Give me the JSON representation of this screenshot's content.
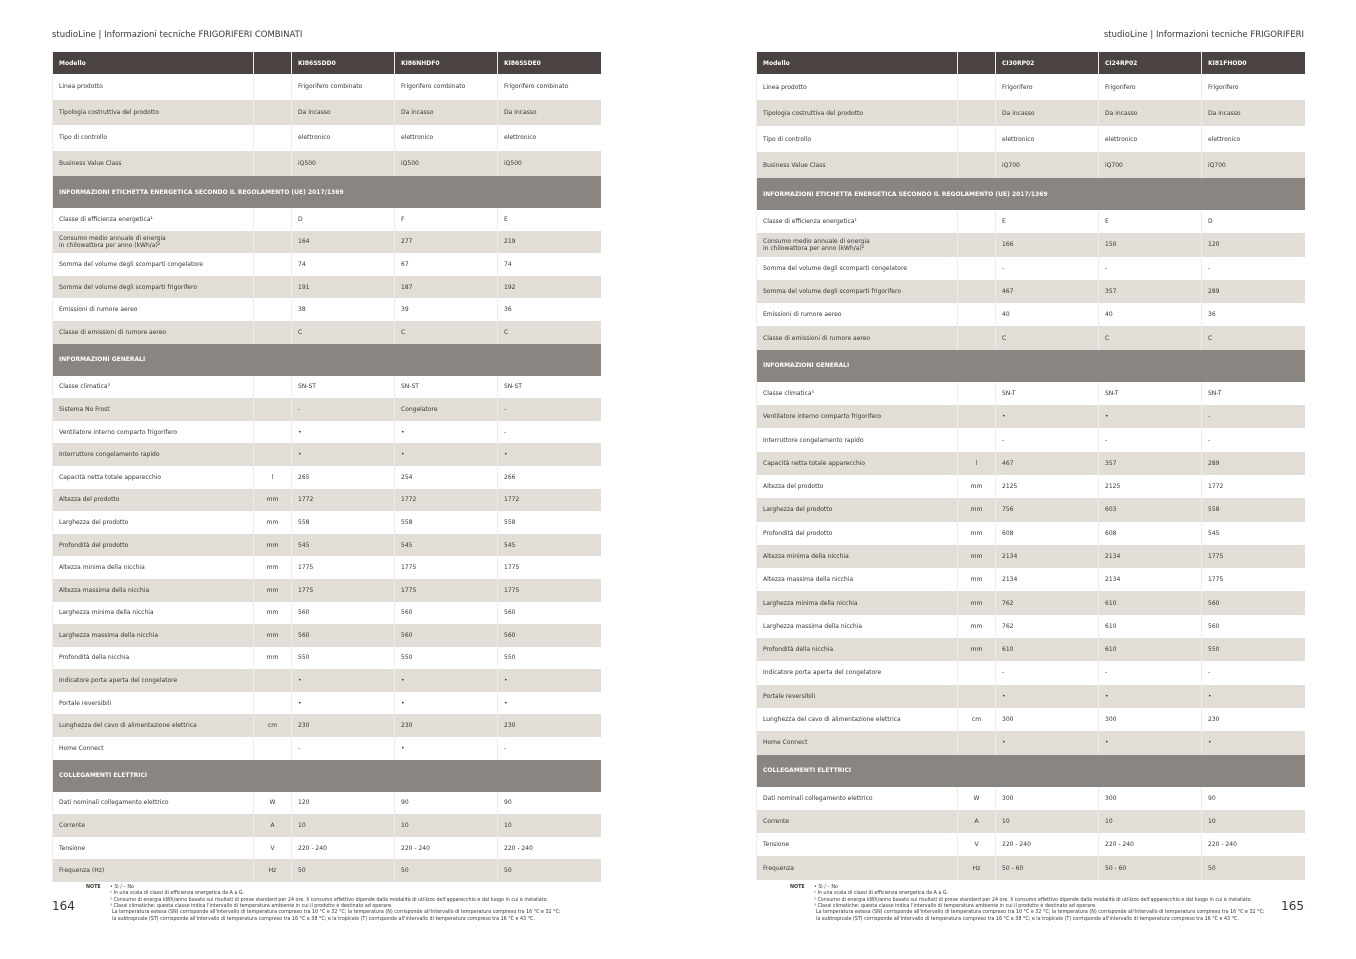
{
  "pages": [
    {
      "header": "studioLine | Informazioni tecniche FRIGORIFERI COMBINATI",
      "page_number": "164",
      "table": {
        "header": [
          "Modello",
          null,
          "KI86SSDD0",
          "KI86NHDF0",
          "KI86SSDE0"
        ],
        "rows": [
          [
            "Linea prodotto",
            null,
            "Frigorifero combinato",
            "Frigorifero combinato",
            "Frigorifero combinato"
          ],
          [
            "Tipologia costruttiva del prodotto",
            null,
            "Da incasso",
            "Da incasso",
            "Da incasso"
          ],
          [
            "Tipo di controllo",
            null,
            "elettronico",
            "elettronico",
            "elettronico"
          ],
          [
            "Business Value Class",
            null,
            "iQ500",
            "iQ500",
            "iQ500"
          ],
          [
            "INFORMAZIONI ETICHETTA ENERGETICA SECONDO IL REGOLAMENTO (UE) 2017/1369"
          ],
          [
            "Classe di efficienza energetica¹",
            null,
            "D",
            "F",
            "E"
          ],
          [
            "Consumo medio annuale di energia\nin chilowattora per anno (kWh/a)²",
            null,
            "164",
            "277",
            "219"
          ],
          [
            "Somma del volume degli scomparti congelatore",
            null,
            "74",
            "67",
            "74"
          ],
          [
            "Somma del volume degli scomparti frigorifero",
            null,
            "191",
            "187",
            "192"
          ],
          [
            "Emissioni di rumore aereo",
            null,
            "38",
            "39",
            "36"
          ],
          [
            "Classe di emissioni di rumore aereo",
            null,
            "C",
            "C",
            "C"
          ],
          [
            "INFORMAZIONI GENERALI"
          ],
          [
            "Classe climatica³",
            null,
            "SN-ST",
            "SN-ST",
            "SN-ST"
          ],
          [
            "Sistema No Frost",
            null,
            "-",
            "Congelatore",
            "-"
          ],
          [
            "Ventilatore interno comparto frigorifero",
            null,
            "•",
            "•",
            "-"
          ],
          [
            "Interruttore congelamento rapido",
            null,
            "•",
            "•",
            "•"
          ],
          [
            "Capacità netta totale apparecchio",
            "l",
            "265",
            "254",
            "266"
          ],
          [
            "Altezza del prodotto",
            "mm",
            "1772",
            "1772",
            "1772"
          ],
          [
            "Larghezza del prodotto",
            "mm",
            "558",
            "558",
            "558"
          ],
          [
            "Profondità del prodotto",
            "mm",
            "545",
            "545",
            "545"
          ],
          [
            "Altezza minima della nicchia",
            "mm",
            "1775",
            "1775",
            "1775"
          ],
          [
            "Altezza massima della nicchia",
            "mm",
            "1775",
            "1775",
            "1775"
          ],
          [
            "Larghezza minima della nicchia",
            "mm",
            "560",
            "560",
            "560"
          ],
          [
            "Larghezza massima della nicchia",
            "mm",
            "560",
            "560",
            "560"
          ],
          [
            "Profondità della nicchia",
            "mm",
            "550",
            "550",
            "550"
          ],
          [
            "Indicatore porta aperta del congelatore",
            null,
            "•",
            "•",
            "•"
          ],
          [
            "Portale reversibili",
            null,
            "•",
            "•",
            "•"
          ],
          [
            "Lunghezza del cavo di alimentazione elettrica",
            "cm",
            "230",
            "230",
            "230"
          ],
          [
            "Home Connect",
            null,
            "-",
            "•",
            "-"
          ],
          [
            "COLLEGAMENTI ELETTRICI"
          ],
          [
            "Dati nominali collegamento elettrico",
            "W",
            "120",
            "90",
            "90"
          ],
          [
            "Corrente",
            "A",
            "10",
            "10",
            "10"
          ],
          [
            "Tensione",
            "V",
            "220 - 240",
            "220 - 240",
            "220 - 240"
          ],
          [
            "Frequenza (Hz)",
            "Hz",
            "50",
            "50",
            "50"
          ]
        ]
      },
      "notes": {
        "label": "NOTE",
        "lines": [
          "• Sì / – No",
          "¹ In una scala di classi di efficienza energetica da A a G.",
          "² Consumo di energia kWh/anno basato sui risultati di prove standard per 24 ore. Il consumo effettivo dipende dalla modalità di utilizzo dell'apparecchio e dal luogo in cui è installato.",
          "³ Classi climatiche: questa classe indica l'intervallo di temperatura ambiente in cui il prodotto è destinato ad operare.",
          "La temperatura estesa (SN) corrisponde all'intervallo di temperatura compreso tra 10 °C e 32 °C; la temperatura (N) corrisponde all'intervallo di temperatura compreso tra 16 °C e 32 °C;",
          "la subtropicale (ST) corrisponde all'intervallo di temperatura compreso tra 16 °C e 38 °C; e la tropicale (T) corrisponde all'intervallo di temperatura compreso tra 16 °C e 43 °C."
        ]
      }
    },
    {
      "header": "studioLine | Informazioni tecniche FRIGORIFERI",
      "page_number": "165",
      "table": {
        "header": [
          "Modello",
          null,
          "CI30RP02",
          "CI24RP02",
          "KI81FHOD0"
        ],
        "rows": [
          [
            "Linea prodotto",
            null,
            "Frigorifero",
            "Frigorifero",
            "Frigorifero"
          ],
          [
            "Tipologia costruttiva del prodotto",
            null,
            "Da incasso",
            "Da incasso",
            "Da incasso"
          ],
          [
            "Tipo di controllo",
            null,
            "elettronico",
            "elettronico",
            "elettronico"
          ],
          [
            "Business Value Class",
            null,
            "iQ700",
            "iQ700",
            "iQ700"
          ],
          [
            "INFORMAZIONI ETICHETTA ENERGETICA SECONDO IL REGOLAMENTO (UE) 2017/1369"
          ],
          [
            "Classe di efficienza energetica¹",
            null,
            "E",
            "E",
            "D"
          ],
          [
            "Consumo medio annuale di energia\nin chilowattora per anno (kWh/a)²",
            null,
            "166",
            "150",
            "120"
          ],
          [
            "Somma del volume degli scomparti congelatore",
            null,
            "-",
            "-",
            "-"
          ],
          [
            "Somma del volume degli scomparti frigorifero",
            null,
            "467",
            "357",
            "289"
          ],
          [
            "Emissioni di rumore aereo",
            null,
            "40",
            "40",
            "36"
          ],
          [
            "Classe di emissioni di rumore aereo",
            null,
            "C",
            "C",
            "C"
          ],
          [
            "INFORMAZIONI GENERALI"
          ],
          [
            "Classe climatica³",
            null,
            "SN-T",
            "SN-T",
            "SN-T"
          ],
          [
            "Ventilatore interno comparto frigorifero",
            null,
            "•",
            "•",
            "-"
          ],
          [
            "Interruttore congelamento rapido",
            null,
            "-",
            "-",
            "-"
          ],
          [
            "Capacità netta totale apparecchio",
            "l",
            "467",
            "357",
            "289"
          ],
          [
            "Altezza del prodotto",
            "mm",
            "2125",
            "2125",
            "1772"
          ],
          [
            "Larghezza del prodotto",
            "mm",
            "756",
            "603",
            "558"
          ],
          [
            "Profondità del prodotto",
            "mm",
            "608",
            "608",
            "545"
          ],
          [
            "Altezza minima della nicchia",
            "mm",
            "2134",
            "2134",
            "1775"
          ],
          [
            "Altezza massima della nicchia",
            "mm",
            "2134",
            "2134",
            "1775"
          ],
          [
            "Larghezza minima della nicchia",
            "mm",
            "762",
            "610",
            "560"
          ],
          [
            "Larghezza massima della nicchia",
            "mm",
            "762",
            "610",
            "560"
          ],
          [
            "Profondità della nicchia",
            "mm",
            "610",
            "610",
            "550"
          ],
          [
            "Indicatore porta aperta del congelatore",
            null,
            "-",
            "-",
            "-"
          ],
          [
            "Portale reversibili",
            null,
            "•",
            "•",
            "•"
          ],
          [
            "Lunghezza del cavo di alimentazione elettrica",
            "cm",
            "300",
            "300",
            "230"
          ],
          [
            "Home Connect",
            null,
            "•",
            "•",
            "•"
          ],
          [
            "COLLEGAMENTI ELETTRICI"
          ],
          [
            "Dati nominali collegamento elettrico",
            "W",
            "300",
            "300",
            "90"
          ],
          [
            "Corrente",
            "A",
            "10",
            "10",
            "10"
          ],
          [
            "Tensione",
            "V",
            "220 - 240",
            "220 - 240",
            "220 - 240"
          ],
          [
            "Frequenza",
            "Hz",
            "50 - 60",
            "50 - 60",
            "50"
          ]
        ]
      },
      "notes": {
        "label": "NOTE",
        "lines": [
          "• Sì / – No",
          "¹ In una scala di classi di efficienza energetica da A a G.",
          "² Consumo di energia kWh/anno basato sui risultati di prove standard per 24 ore. Il consumo effettivo dipende dalla modalità di utilizzo dell'apparecchio e dal luogo in cui è installato.",
          "³ Classi climatiche: questa classe indica l'intervallo di temperatura ambiente in cui il prodotto è destinato ad operare.",
          "La temperatura estesa (SN) corrisponde all'intervallo di temperatura compreso tra 10 °C e 32 °C; la temperatura (N) corrisponde all'intervallo di temperatura compreso tra 16 °C e 32 °C;",
          "la subtropicale (ST) corrisponde all'intervallo di temperatura compreso tra 16 °C e 38 °C; e la tropicale (T) corrisponde all'intervallo di temperatura compreso tra 16 °C e 43 °C."
        ]
      }
    }
  ]
}
